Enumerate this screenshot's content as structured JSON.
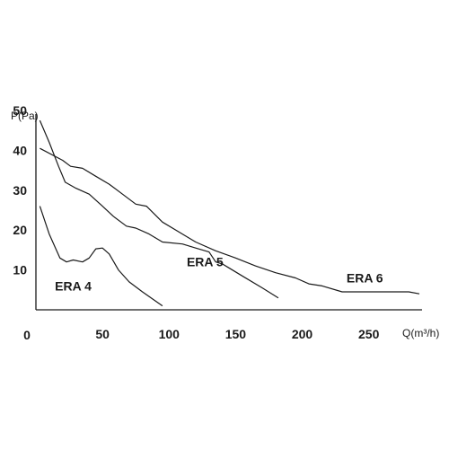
{
  "chart_data": {
    "type": "line",
    "title": "",
    "xlabel": "Q(m³/h)",
    "ylabel": "P(Pa)",
    "xlim": [
      0,
      290
    ],
    "ylim": [
      0,
      50
    ],
    "x_ticks": [
      "50",
      "100",
      "150",
      "200",
      "250"
    ],
    "y_ticks": [
      "10",
      "20",
      "30",
      "40",
      "50"
    ],
    "origin_label": "0",
    "grid": false,
    "colors": {
      "line": "#1a1a1a",
      "axis": "#1a1a1a"
    },
    "series": [
      {
        "name": "ERA 4",
        "label_at": [
          28,
          6
        ],
        "points": [
          [
            3,
            26
          ],
          [
            10,
            19
          ],
          [
            18,
            13
          ],
          [
            23,
            12
          ],
          [
            28,
            12.5
          ],
          [
            35,
            12
          ],
          [
            40,
            13
          ],
          [
            45,
            15.3
          ],
          [
            50,
            15.5
          ],
          [
            55,
            14
          ],
          [
            62,
            10
          ],
          [
            70,
            7
          ],
          [
            80,
            4.5
          ],
          [
            95,
            1
          ]
        ]
      },
      {
        "name": "ERA 5",
        "label_at": [
          127,
          12
        ]
      },
      {
        "name": "ERA 6",
        "label_at": [
          247,
          8
        ]
      }
    ],
    "unlabeled_lines": [
      [
        [
          3,
          47.5
        ],
        [
          10,
          42
        ],
        [
          17,
          36
        ],
        [
          22,
          32
        ],
        [
          30,
          30.5
        ],
        [
          40,
          29
        ],
        [
          50,
          26
        ],
        [
          58,
          23.5
        ],
        [
          68,
          21
        ],
        [
          75,
          20.5
        ],
        [
          85,
          19
        ],
        [
          95,
          17
        ],
        [
          110,
          16.5
        ],
        [
          120,
          15.5
        ],
        [
          130,
          14.5
        ],
        [
          135,
          12
        ],
        [
          140,
          11.5
        ],
        [
          155,
          8.5
        ],
        [
          170,
          5.5
        ],
        [
          182,
          3
        ]
      ],
      [
        [
          3,
          40.5
        ],
        [
          20,
          37.5
        ],
        [
          26,
          36
        ],
        [
          35,
          35.5
        ],
        [
          45,
          33.5
        ],
        [
          55,
          31.5
        ],
        [
          65,
          29
        ],
        [
          75,
          26.5
        ],
        [
          83,
          26
        ],
        [
          95,
          22
        ],
        [
          110,
          19
        ],
        [
          120,
          17
        ],
        [
          135,
          14.8
        ],
        [
          150,
          13
        ],
        [
          165,
          11
        ],
        [
          180,
          9.3
        ],
        [
          195,
          8
        ],
        [
          205,
          6.5
        ],
        [
          215,
          6
        ],
        [
          230,
          4.5
        ],
        [
          260,
          4.5
        ],
        [
          280,
          4.5
        ],
        [
          288,
          4
        ]
      ]
    ]
  }
}
